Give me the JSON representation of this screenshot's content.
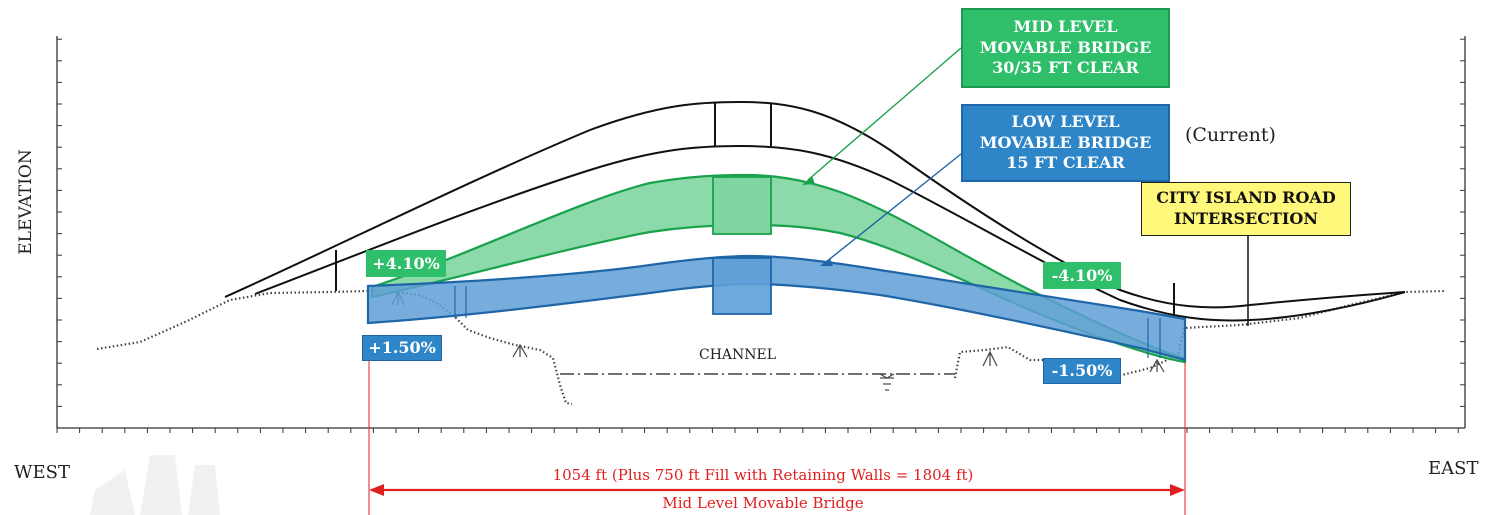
{
  "labels": {
    "mid_level": {
      "line1": "MID LEVEL",
      "line2": "MOVABLE BRIDGE",
      "line3": "30/35 FT CLEAR",
      "color": "#2fbf6a"
    },
    "low_level": {
      "line1": "LOW LEVEL",
      "line2": "MOVABLE BRIDGE",
      "line3": "15 FT CLEAR",
      "color": "#2e86c8"
    },
    "current": "(Current)",
    "city_island": {
      "line1": "CITY ISLAND ROAD",
      "line2": "INTERSECTION",
      "color": "#fff87a"
    },
    "channel": "CHANNEL",
    "axis_y": "ELEVATION",
    "west": "WEST",
    "east": "EAST"
  },
  "grades": {
    "mid_west": "+4.10%",
    "mid_east": "-4.10%",
    "low_west": "+1.50%",
    "low_east": "-1.50%"
  },
  "dimension": {
    "line1": "1054 ft (Plus 750 ft Fill with Retaining Walls = 1804 ft)",
    "line2": "Mid Level Movable Bridge",
    "color": "#e02020"
  }
}
